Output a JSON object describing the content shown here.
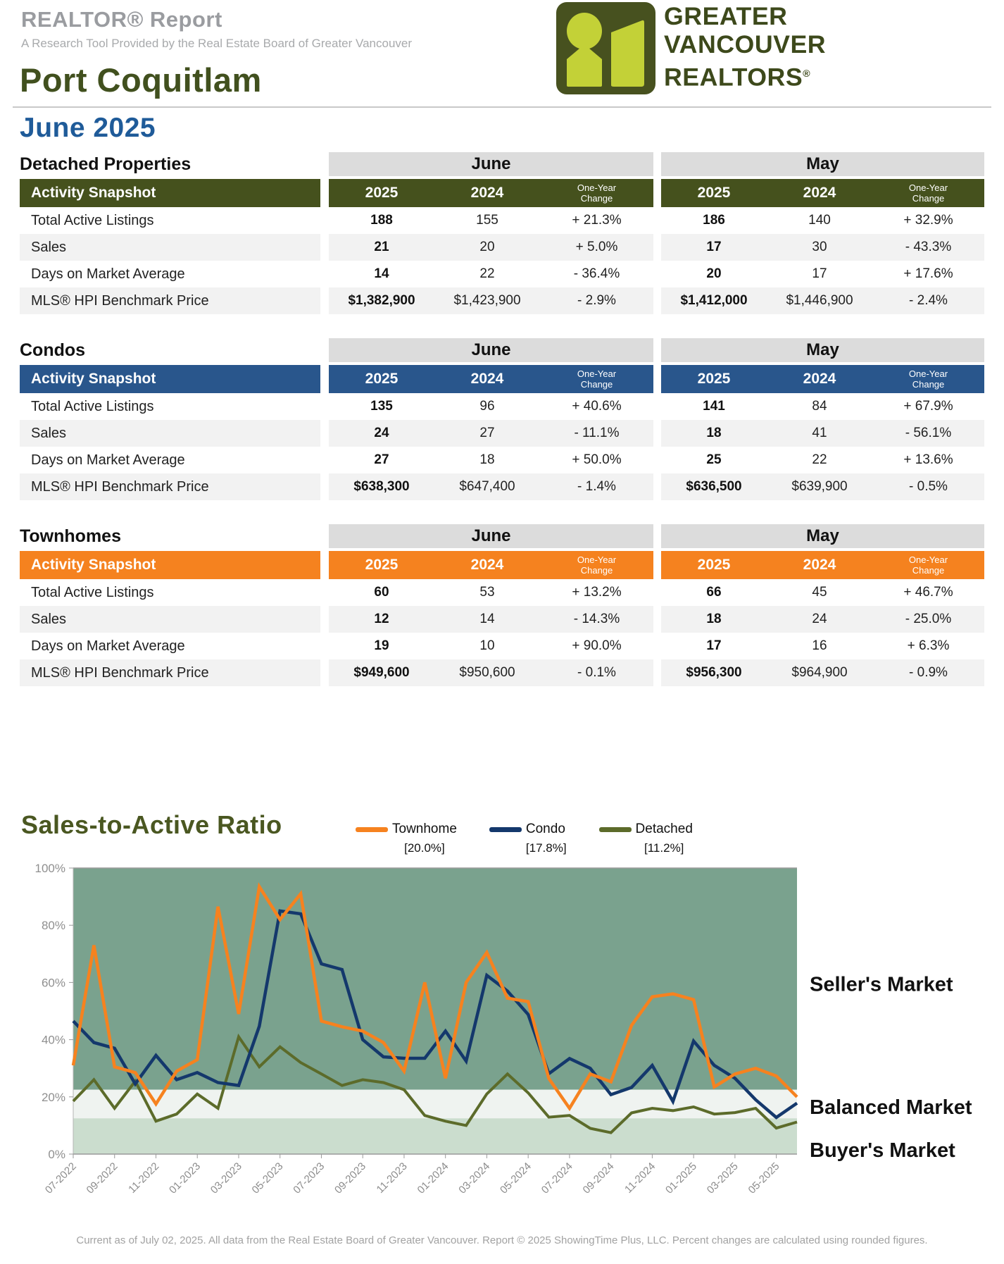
{
  "header": {
    "report_title": "REALTOR® Report",
    "report_subtitle": "A Research Tool Provided by the Real Estate Board of Greater Vancouver",
    "city": "Port Coquitlam",
    "logo": {
      "line1": "GREATER",
      "line2": "VANCOUVER",
      "line3": "REALTORS",
      "reg": "®"
    }
  },
  "period_heading": "June 2025",
  "tables": [
    {
      "name": "Detached Properties",
      "accent_color": "#45511d",
      "month_groups": [
        "June",
        "May"
      ],
      "snapshot_label": "Activity Snapshot",
      "columns": [
        "2025",
        "2024",
        "One-Year Change"
      ],
      "rows": [
        {
          "label": "Total Active Listings",
          "june": [
            "188",
            "155",
            "+ 21.3%"
          ],
          "may": [
            "186",
            "140",
            "+ 32.9%"
          ]
        },
        {
          "label": "Sales",
          "june": [
            "21",
            "20",
            "+ 5.0%"
          ],
          "may": [
            "17",
            "30",
            "- 43.3%"
          ]
        },
        {
          "label": "Days on Market Average",
          "june": [
            "14",
            "22",
            "- 36.4%"
          ],
          "may": [
            "20",
            "17",
            "+ 17.6%"
          ]
        },
        {
          "label": "MLS® HPI Benchmark Price",
          "june": [
            "$1,382,900",
            "$1,423,900",
            "- 2.9%"
          ],
          "may": [
            "$1,412,000",
            "$1,446,900",
            "- 2.4%"
          ]
        }
      ]
    },
    {
      "name": "Condos",
      "accent_color": "#29568c",
      "month_groups": [
        "June",
        "May"
      ],
      "snapshot_label": "Activity Snapshot",
      "columns": [
        "2025",
        "2024",
        "One-Year Change"
      ],
      "rows": [
        {
          "label": "Total Active Listings",
          "june": [
            "135",
            "96",
            "+ 40.6%"
          ],
          "may": [
            "141",
            "84",
            "+ 67.9%"
          ]
        },
        {
          "label": "Sales",
          "june": [
            "24",
            "27",
            "- 11.1%"
          ],
          "may": [
            "18",
            "41",
            "- 56.1%"
          ]
        },
        {
          "label": "Days on Market Average",
          "june": [
            "27",
            "18",
            "+ 50.0%"
          ],
          "may": [
            "25",
            "22",
            "+ 13.6%"
          ]
        },
        {
          "label": "MLS® HPI Benchmark Price",
          "june": [
            "$638,300",
            "$647,400",
            "- 1.4%"
          ],
          "may": [
            "$636,500",
            "$639,900",
            "- 0.5%"
          ]
        }
      ]
    },
    {
      "name": "Townhomes",
      "accent_color": "#f5821f",
      "month_groups": [
        "June",
        "May"
      ],
      "snapshot_label": "Activity Snapshot",
      "columns": [
        "2025",
        "2024",
        "One-Year Change"
      ],
      "rows": [
        {
          "label": "Total Active Listings",
          "june": [
            "60",
            "53",
            "+ 13.2%"
          ],
          "may": [
            "66",
            "45",
            "+ 46.7%"
          ]
        },
        {
          "label": "Sales",
          "june": [
            "12",
            "14",
            "- 14.3%"
          ],
          "may": [
            "18",
            "24",
            "- 25.0%"
          ]
        },
        {
          "label": "Days on Market Average",
          "june": [
            "19",
            "10",
            "+ 90.0%"
          ],
          "may": [
            "17",
            "16",
            "+ 6.3%"
          ]
        },
        {
          "label": "MLS® HPI Benchmark Price",
          "june": [
            "$949,600",
            "$950,600",
            "- 0.1%"
          ],
          "may": [
            "$956,300",
            "$964,900",
            "- 0.9%"
          ]
        }
      ]
    }
  ],
  "chart_data": {
    "type": "line",
    "title": "Sales-to-Active Ratio",
    "x": [
      "07-2022",
      "08-2022",
      "09-2022",
      "10-2022",
      "11-2022",
      "12-2022",
      "01-2023",
      "02-2023",
      "03-2023",
      "04-2023",
      "05-2023",
      "06-2023",
      "07-2023",
      "08-2023",
      "09-2023",
      "10-2023",
      "11-2023",
      "12-2023",
      "01-2024",
      "02-2024",
      "03-2024",
      "04-2024",
      "05-2024",
      "06-2024",
      "07-2024",
      "08-2024",
      "09-2024",
      "10-2024",
      "11-2024",
      "12-2024",
      "01-2025",
      "02-2025",
      "03-2025",
      "04-2025",
      "05-2025",
      "06-2025"
    ],
    "x_tick_every": 2,
    "ylim": [
      0,
      100
    ],
    "y_ticks": [
      "0%",
      "20%",
      "40%",
      "60%",
      "80%",
      "100%"
    ],
    "grid": false,
    "legend_position": "top",
    "series": [
      {
        "name": "Townhome",
        "legend_value": "[20.0%]",
        "color": "#f6821f",
        "values": [
          31,
          73,
          30.5,
          28.5,
          17.5,
          29,
          33,
          86.5,
          49,
          93.5,
          82,
          91,
          46.5,
          44.5,
          43,
          39,
          29,
          60,
          26.5,
          60,
          70.5,
          54.5,
          53.3,
          26.4,
          16,
          28,
          25.3,
          45,
          55,
          56,
          54,
          23.5,
          28,
          30,
          27.3,
          20
        ]
      },
      {
        "name": "Condo",
        "legend_value": "[17.8%]",
        "color": "#14386c",
        "values": [
          46.5,
          39,
          37,
          24.5,
          34.5,
          26,
          28.5,
          25,
          24,
          44.7,
          85,
          84,
          66.5,
          64.5,
          40,
          34,
          33.5,
          33.5,
          43,
          32.5,
          62.5,
          57,
          48.8,
          28.1,
          33.4,
          30,
          20.8,
          23.3,
          31,
          18.4,
          39.5,
          31,
          26.5,
          19,
          12.8,
          17.8
        ]
      },
      {
        "name": "Detached",
        "legend_value": "[11.2%]",
        "color": "#5c6b2a",
        "values": [
          18.5,
          26,
          16,
          25.5,
          11.5,
          14,
          21,
          16,
          41,
          30.5,
          37.5,
          32,
          28,
          24,
          26,
          25,
          22.5,
          13.5,
          11.5,
          10,
          21,
          28,
          21.4,
          12.9,
          13.5,
          9,
          7.5,
          14.4,
          16,
          15.2,
          16.5,
          14,
          14.5,
          16,
          9.1,
          11.2
        ]
      }
    ],
    "bands": [
      {
        "label": "Seller's Market",
        "from": 22.5,
        "to": 100,
        "color": "#7aa28e"
      },
      {
        "label": "Balanced Market",
        "from": 12.5,
        "to": 22.5,
        "color": "#eff3f0"
      },
      {
        "label": "Buyer's Market",
        "from": 0,
        "to": 12.5,
        "color": "#cbddce"
      }
    ]
  },
  "footer": "Current as of July 02, 2025. All data from the Real Estate Board of Greater Vancouver.  Report © 2025 ShowingTime Plus, LLC. Percent changes are calculated using rounded figures."
}
